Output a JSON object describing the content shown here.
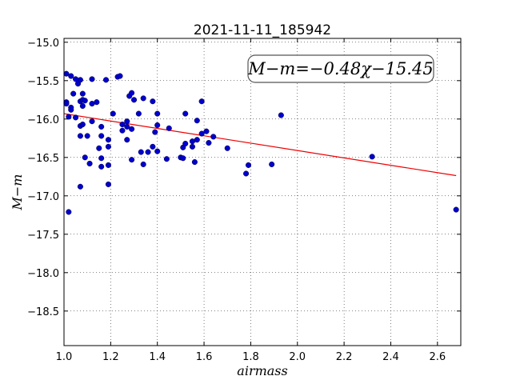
{
  "chart_data": {
    "type": "scatter",
    "title": "2021-11-11_185942",
    "xlabel": "airmass",
    "ylabel": "M−m",
    "annotation": "M−m=−0.48χ−15.45",
    "xlim": [
      1.0,
      2.7
    ],
    "ylim": [
      -18.95,
      -14.95
    ],
    "y_inverted": true,
    "grid": true,
    "x_ticks": [
      1.0,
      1.2,
      1.4,
      1.6,
      1.8,
      2.0,
      2.2,
      2.4,
      2.6
    ],
    "x_tick_labels": [
      "1.0",
      "1.2",
      "1.4",
      "1.6",
      "1.8",
      "2.0",
      "2.2",
      "2.4",
      "2.6"
    ],
    "y_ticks": [
      -15.0,
      -15.5,
      -16.0,
      -16.5,
      -17.0,
      -17.5,
      -18.0,
      -18.5
    ],
    "y_tick_labels": [
      "−15.0",
      "−15.5",
      "−16.0",
      "−16.5",
      "−17.0",
      "−17.5",
      "−18.0",
      "−18.5"
    ],
    "colors": {
      "points": "#0000cc",
      "fit_line": "#ee0000"
    },
    "fit": {
      "slope": -0.48,
      "intercept": -15.45,
      "x_range": [
        1.0,
        2.68
      ]
    },
    "points": [
      {
        "x": 1.01,
        "y": -15.41
      },
      {
        "x": 1.01,
        "y": -15.78
      },
      {
        "x": 1.01,
        "y": -15.8
      },
      {
        "x": 1.02,
        "y": -17.21
      },
      {
        "x": 1.02,
        "y": -15.97
      },
      {
        "x": 1.03,
        "y": -15.44
      },
      {
        "x": 1.03,
        "y": -15.85
      },
      {
        "x": 1.03,
        "y": -15.88
      },
      {
        "x": 1.04,
        "y": -15.67
      },
      {
        "x": 1.05,
        "y": -15.48
      },
      {
        "x": 1.05,
        "y": -15.98
      },
      {
        "x": 1.06,
        "y": -15.54
      },
      {
        "x": 1.07,
        "y": -15.49
      },
      {
        "x": 1.07,
        "y": -15.77
      },
      {
        "x": 1.07,
        "y": -16.09
      },
      {
        "x": 1.07,
        "y": -16.22
      },
      {
        "x": 1.07,
        "y": -16.88
      },
      {
        "x": 1.08,
        "y": -15.67
      },
      {
        "x": 1.08,
        "y": -15.75
      },
      {
        "x": 1.08,
        "y": -15.83
      },
      {
        "x": 1.08,
        "y": -16.07
      },
      {
        "x": 1.09,
        "y": -15.76
      },
      {
        "x": 1.09,
        "y": -16.5
      },
      {
        "x": 1.1,
        "y": -16.22
      },
      {
        "x": 1.11,
        "y": -16.58
      },
      {
        "x": 1.12,
        "y": -15.48
      },
      {
        "x": 1.12,
        "y": -15.8
      },
      {
        "x": 1.12,
        "y": -16.03
      },
      {
        "x": 1.14,
        "y": -15.78
      },
      {
        "x": 1.15,
        "y": -16.38
      },
      {
        "x": 1.16,
        "y": -16.22
      },
      {
        "x": 1.16,
        "y": -16.51
      },
      {
        "x": 1.16,
        "y": -16.62
      },
      {
        "x": 1.16,
        "y": -16.1
      },
      {
        "x": 1.18,
        "y": -15.49
      },
      {
        "x": 1.19,
        "y": -16.27
      },
      {
        "x": 1.19,
        "y": -16.36
      },
      {
        "x": 1.19,
        "y": -16.6
      },
      {
        "x": 1.19,
        "y": -16.85
      },
      {
        "x": 1.21,
        "y": -15.93
      },
      {
        "x": 1.23,
        "y": -15.45
      },
      {
        "x": 1.24,
        "y": -15.44
      },
      {
        "x": 1.25,
        "y": -16.15
      },
      {
        "x": 1.25,
        "y": -16.07
      },
      {
        "x": 1.27,
        "y": -16.03
      },
      {
        "x": 1.27,
        "y": -16.1
      },
      {
        "x": 1.27,
        "y": -16.27
      },
      {
        "x": 1.28,
        "y": -15.7
      },
      {
        "x": 1.29,
        "y": -15.66
      },
      {
        "x": 1.29,
        "y": -16.13
      },
      {
        "x": 1.29,
        "y": -16.53
      },
      {
        "x": 1.3,
        "y": -15.75
      },
      {
        "x": 1.32,
        "y": -15.93
      },
      {
        "x": 1.33,
        "y": -16.43
      },
      {
        "x": 1.34,
        "y": -16.59
      },
      {
        "x": 1.34,
        "y": -15.73
      },
      {
        "x": 1.36,
        "y": -16.43
      },
      {
        "x": 1.38,
        "y": -15.77
      },
      {
        "x": 1.38,
        "y": -16.36
      },
      {
        "x": 1.39,
        "y": -16.17
      },
      {
        "x": 1.4,
        "y": -15.93
      },
      {
        "x": 1.4,
        "y": -16.08
      },
      {
        "x": 1.4,
        "y": -16.42
      },
      {
        "x": 1.44,
        "y": -16.52
      },
      {
        "x": 1.45,
        "y": -16.12
      },
      {
        "x": 1.5,
        "y": -16.5
      },
      {
        "x": 1.51,
        "y": -16.51
      },
      {
        "x": 1.51,
        "y": -16.37
      },
      {
        "x": 1.52,
        "y": -16.32
      },
      {
        "x": 1.52,
        "y": -15.93
      },
      {
        "x": 1.55,
        "y": -16.29
      },
      {
        "x": 1.55,
        "y": -16.36
      },
      {
        "x": 1.56,
        "y": -16.56
      },
      {
        "x": 1.57,
        "y": -16.27
      },
      {
        "x": 1.57,
        "y": -16.02
      },
      {
        "x": 1.59,
        "y": -16.19
      },
      {
        "x": 1.59,
        "y": -15.77
      },
      {
        "x": 1.61,
        "y": -16.16
      },
      {
        "x": 1.62,
        "y": -16.31
      },
      {
        "x": 1.64,
        "y": -16.23
      },
      {
        "x": 1.7,
        "y": -16.38
      },
      {
        "x": 1.78,
        "y": -16.71
      },
      {
        "x": 1.79,
        "y": -16.6
      },
      {
        "x": 1.89,
        "y": -16.59
      },
      {
        "x": 1.93,
        "y": -15.95
      },
      {
        "x": 2.32,
        "y": -16.49
      },
      {
        "x": 2.68,
        "y": -17.18
      }
    ]
  }
}
